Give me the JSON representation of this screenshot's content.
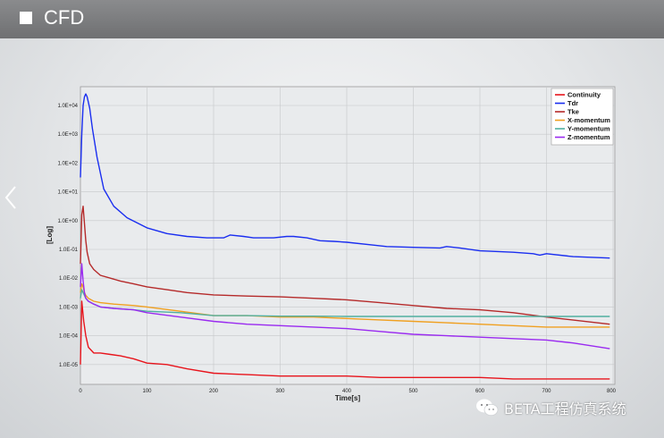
{
  "header": {
    "title": "CFD"
  },
  "watermark": {
    "text": "BETA工程仿真系统",
    "icon": "wechat-icon"
  },
  "nav": {
    "prev_icon": "chevron-left-icon"
  },
  "chart_data": {
    "type": "line",
    "title": "",
    "xlabel": "Time[s]",
    "ylabel": "[Log]",
    "yscale": "log",
    "xlim": [
      0,
      800
    ],
    "ylim_log10": [
      -5.3,
      4.5
    ],
    "x_ticks": [
      "0",
      "100",
      "200",
      "300",
      "400",
      "500",
      "600",
      "700",
      "800"
    ],
    "y_ticks": [
      "1.0E+04",
      "1.0E+03",
      "1.0E+02",
      "1.0E+01",
      "1.0E+00",
      "1.0E-01",
      "1.0E-02",
      "1.0E-03",
      "1.0E-04",
      "1.0E-05"
    ],
    "grid": true,
    "legend_position": "top-right",
    "series": [
      {
        "name": "Continuity",
        "color": "#e8141c",
        "x": [
          0,
          2,
          5,
          8,
          12,
          20,
          30,
          45,
          60,
          80,
          100,
          130,
          160,
          200,
          250,
          300,
          350,
          400,
          450,
          500,
          550,
          600,
          650,
          700,
          740,
          795
        ],
        "log10": [
          -5.0,
          -2.8,
          -3.5,
          -4.0,
          -4.4,
          -4.6,
          -4.6,
          -4.65,
          -4.7,
          -4.8,
          -4.95,
          -5.0,
          -5.15,
          -5.3,
          -5.35,
          -5.4,
          -5.4,
          -5.4,
          -5.45,
          -5.45,
          -5.45,
          -5.45,
          -5.5,
          -5.5,
          -5.5,
          -5.5
        ]
      },
      {
        "name": "Tdr",
        "color": "#1a2ef0",
        "x": [
          0,
          2,
          4,
          6,
          8,
          10,
          14,
          18,
          25,
          35,
          50,
          70,
          100,
          130,
          160,
          190,
          215,
          225,
          245,
          260,
          290,
          310,
          320,
          340,
          360,
          380,
          400,
          440,
          460,
          500,
          540,
          550,
          570,
          600,
          650,
          680,
          690,
          700,
          740,
          795
        ],
        "log10": [
          1.5,
          3.0,
          4.0,
          4.3,
          4.4,
          4.3,
          3.9,
          3.2,
          2.2,
          1.1,
          0.5,
          0.1,
          -0.25,
          -0.45,
          -0.55,
          -0.6,
          -0.6,
          -0.5,
          -0.55,
          -0.6,
          -0.6,
          -0.55,
          -0.55,
          -0.6,
          -0.7,
          -0.72,
          -0.75,
          -0.85,
          -0.9,
          -0.93,
          -0.95,
          -0.9,
          -0.95,
          -1.05,
          -1.1,
          -1.15,
          -1.2,
          -1.15,
          -1.25,
          -1.3
        ]
      },
      {
        "name": "Tke",
        "color": "#b52a2a",
        "x": [
          0,
          2,
          4,
          6,
          8,
          10,
          14,
          20,
          30,
          45,
          60,
          80,
          100,
          130,
          160,
          200,
          250,
          300,
          350,
          400,
          450,
          500,
          550,
          600,
          650,
          700,
          795
        ],
        "log10": [
          -1.5,
          0.2,
          0.5,
          -0.1,
          -0.7,
          -1.1,
          -1.5,
          -1.7,
          -1.9,
          -2.0,
          -2.1,
          -2.2,
          -2.3,
          -2.4,
          -2.5,
          -2.58,
          -2.62,
          -2.65,
          -2.7,
          -2.75,
          -2.85,
          -2.95,
          -3.05,
          -3.1,
          -3.2,
          -3.35,
          -3.6
        ]
      },
      {
        "name": "X-momentum",
        "color": "#f0a020",
        "x": [
          0,
          2,
          4,
          6,
          8,
          12,
          20,
          30,
          50,
          80,
          100,
          150,
          200,
          250,
          300,
          350,
          400,
          450,
          500,
          550,
          600,
          650,
          700,
          795
        ],
        "log10": [
          -2.5,
          -2.2,
          -2.3,
          -2.5,
          -2.6,
          -2.7,
          -2.8,
          -2.85,
          -2.9,
          -2.95,
          -3.0,
          -3.15,
          -3.3,
          -3.3,
          -3.35,
          -3.35,
          -3.4,
          -3.45,
          -3.5,
          -3.55,
          -3.6,
          -3.65,
          -3.7,
          -3.7
        ]
      },
      {
        "name": "Y-momentum",
        "color": "#50b0a0",
        "x": [
          0,
          2,
          4,
          6,
          8,
          12,
          20,
          30,
          50,
          80,
          100,
          150,
          200,
          250,
          300,
          350,
          400,
          450,
          500,
          550,
          600,
          650,
          700,
          795
        ],
        "log10": [
          -2.7,
          -2.4,
          -2.5,
          -2.6,
          -2.7,
          -2.8,
          -2.9,
          -3.0,
          -3.05,
          -3.1,
          -3.15,
          -3.2,
          -3.3,
          -3.3,
          -3.32,
          -3.32,
          -3.33,
          -3.33,
          -3.33,
          -3.33,
          -3.33,
          -3.33,
          -3.33,
          -3.33
        ]
      },
      {
        "name": "Z-momentum",
        "color": "#9a2af0",
        "x": [
          0,
          2,
          4,
          6,
          8,
          12,
          20,
          30,
          50,
          80,
          100,
          150,
          200,
          250,
          300,
          350,
          400,
          450,
          500,
          550,
          600,
          650,
          700,
          740,
          795
        ],
        "log10": [
          -2.3,
          -1.5,
          -2.1,
          -2.5,
          -2.7,
          -2.8,
          -2.9,
          -3.0,
          -3.05,
          -3.1,
          -3.2,
          -3.35,
          -3.5,
          -3.6,
          -3.65,
          -3.7,
          -3.75,
          -3.85,
          -3.95,
          -4.0,
          -4.05,
          -4.1,
          -4.15,
          -4.25,
          -4.45
        ]
      }
    ]
  }
}
